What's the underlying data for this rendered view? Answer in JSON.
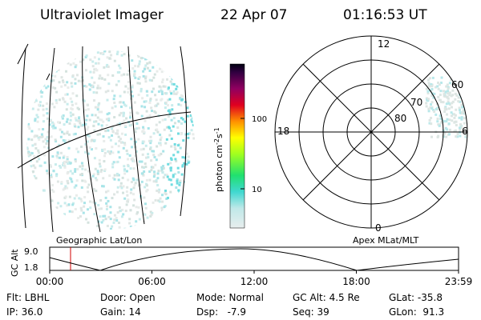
{
  "header": {
    "instrument": "Ultraviolet Imager",
    "date": "22 Apr 07",
    "time": "01:16:53 UT"
  },
  "colorbar": {
    "label": "photon cm",
    "exp1": "-2",
    "unit2": "s",
    "exp2": "-1",
    "ticks": [
      "100",
      "10"
    ]
  },
  "polar": {
    "mlt_labels": [
      "12",
      "18",
      "6",
      "0"
    ],
    "lat_labels": [
      "60",
      "70",
      "80"
    ]
  },
  "panel_titles": [
    "Geographic Lat/Lon",
    "Apex MLat/MLT"
  ],
  "orbit": {
    "ylabel": "GC Alt",
    "yticks": [
      "9.0",
      "1.8"
    ],
    "xticks": [
      "00:00",
      "06:00",
      "12:00",
      "18:00",
      "23:59"
    ]
  },
  "info": {
    "rows": [
      [
        "Flt: LBHL",
        "Door: Open",
        "Mode: Normal",
        "GC Alt: 4.5 Re",
        "GLat: -35.8"
      ],
      [
        "IP: 36.0",
        "Gain: 14",
        "Dsp:   -7.9",
        "Seq: 39",
        "GLon:  91.3"
      ]
    ]
  }
}
